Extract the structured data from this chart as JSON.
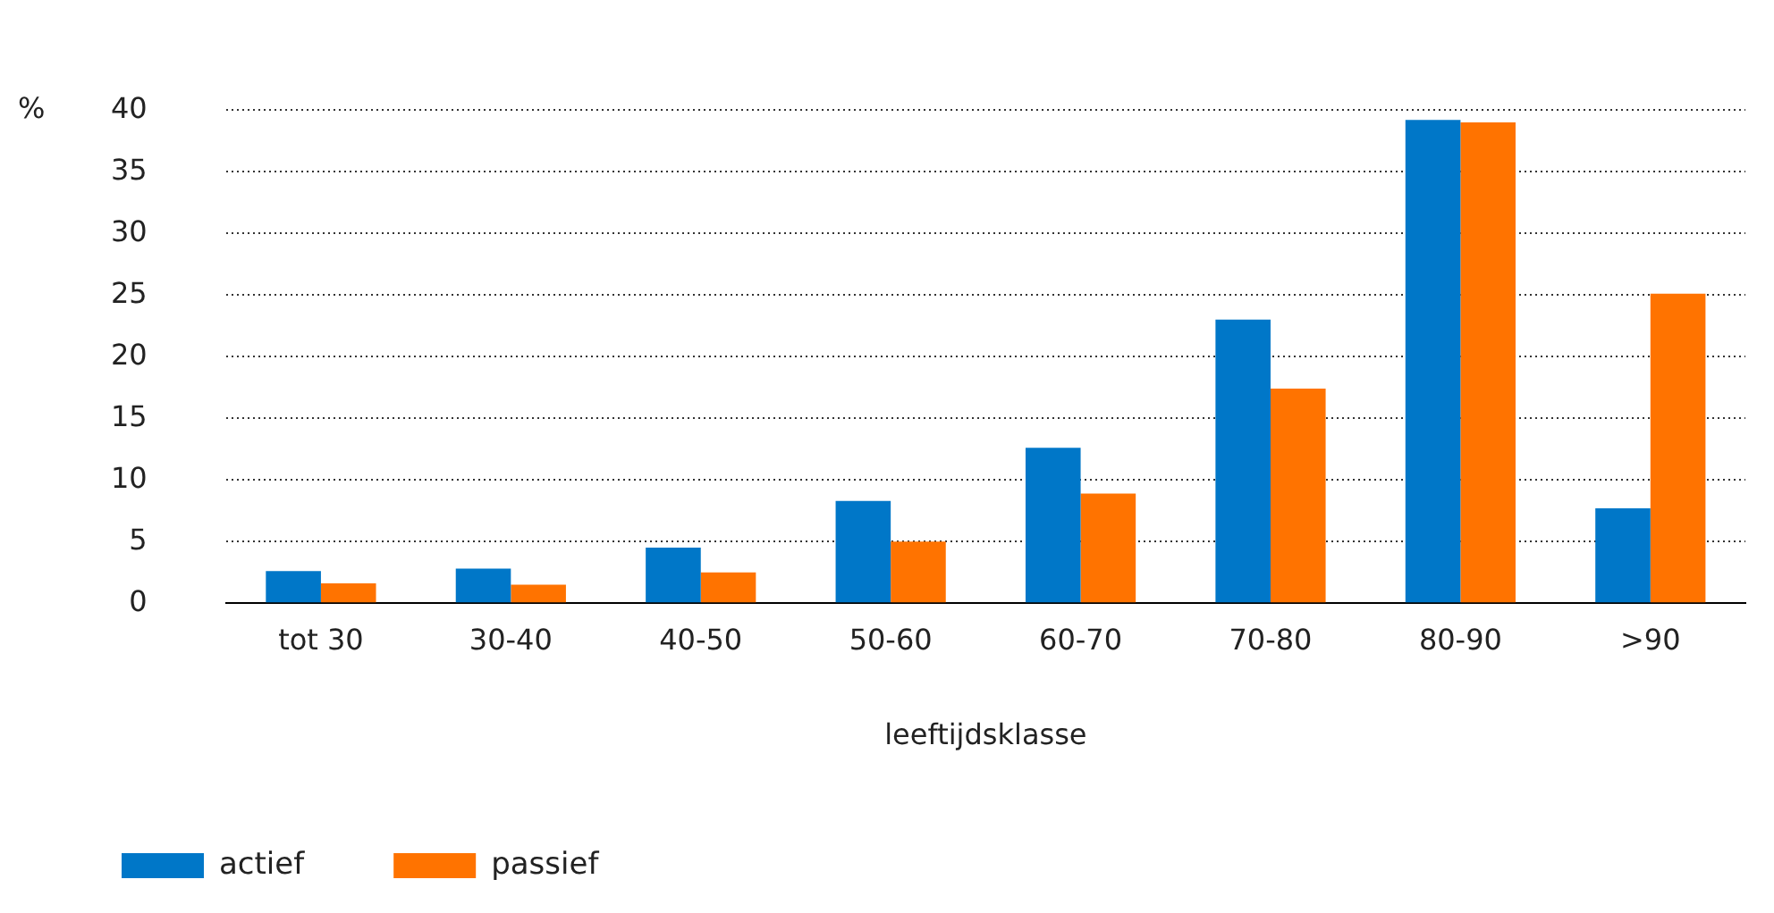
{
  "chart_data": {
    "type": "bar",
    "xlabel": "leeftijdsklasse",
    "ylabel": "%",
    "categories": [
      "tot 30",
      "30-40",
      "40-50",
      "50-60",
      "60-70",
      "70-80",
      "80-90",
      ">90"
    ],
    "series": [
      {
        "name": "actief",
        "color": "#0077c8",
        "values": [
          2.6,
          2.8,
          4.5,
          8.3,
          12.6,
          23.0,
          39.2,
          7.7
        ]
      },
      {
        "name": "passief",
        "color": "#ff7300",
        "values": [
          1.6,
          1.5,
          2.5,
          5.0,
          8.9,
          17.4,
          39.0,
          25.1
        ]
      }
    ],
    "ylim": [
      0,
      40
    ],
    "yticks": [
      0,
      5,
      10,
      15,
      20,
      25,
      30,
      35,
      40
    ],
    "grid": "y",
    "legend": "bottom left"
  }
}
